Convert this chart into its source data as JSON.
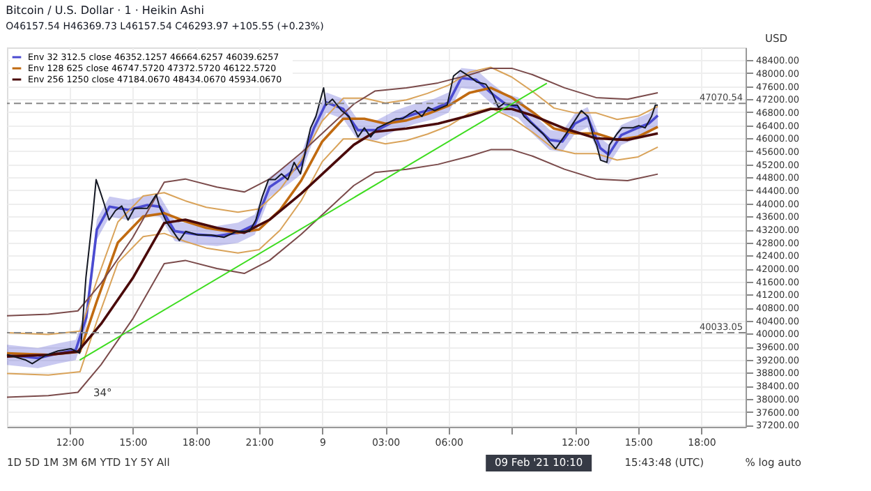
{
  "chart_data": {
    "type": "line",
    "title": "Bitcoin / U.S. Dollar · 1 · Heikin Ashi",
    "subtitle": "O46157.54 H46369.73 L46157.54 C46293.97 +105.55 (+0.23%)",
    "xlim": [
      "2021-02-08T09:02",
      "2021-02-09T20:06"
    ],
    "xticks": [
      {
        "value": "2021-02-08T12:00",
        "label": "12:00"
      },
      {
        "value": "2021-02-08T15:00",
        "label": "15:00"
      },
      {
        "value": "2021-02-08T18:00",
        "label": "18:00"
      },
      {
        "value": "2021-02-08T21:00",
        "label": "21:00"
      },
      {
        "value": "2021-02-09T00:00",
        "label": "9"
      },
      {
        "value": "2021-02-09T03:00",
        "label": "03:00"
      },
      {
        "value": "2021-02-09T06:00",
        "label": "06:00"
      },
      {
        "value": "2021-02-09T09:00",
        "label": null
      },
      {
        "value": "2021-02-09T12:00",
        "label": "12:00"
      },
      {
        "value": "2021-02-09T15:00",
        "label": "15:00"
      },
      {
        "value": "2021-02-09T18:00",
        "label": "18:00"
      }
    ],
    "ylim": [
      37140,
      48790
    ],
    "yticks": [
      {
        "value": 37200,
        "label": "37200.00"
      },
      {
        "value": 37600,
        "label": "37600.00"
      },
      {
        "value": 38000,
        "label": "38000.00"
      },
      {
        "value": 38400,
        "label": "38400.00"
      },
      {
        "value": 38800,
        "label": "38800.00"
      },
      {
        "value": 39200,
        "label": "39200.00"
      },
      {
        "value": 39600,
        "label": "39600.00"
      },
      {
        "value": 40000,
        "label": "40000.00"
      },
      {
        "value": 40400,
        "label": "40400.00"
      },
      {
        "value": 40800,
        "label": "40800.00"
      },
      {
        "value": 41200,
        "label": "41200.00"
      },
      {
        "value": 41600,
        "label": "41600.00"
      },
      {
        "value": 42000,
        "label": "42000.00"
      },
      {
        "value": 42400,
        "label": "42400.00"
      },
      {
        "value": 42800,
        "label": "42800.00"
      },
      {
        "value": 43200,
        "label": "43200.00"
      },
      {
        "value": 43600,
        "label": "43600.00"
      },
      {
        "value": 44000,
        "label": "44000.00"
      },
      {
        "value": 44400,
        "label": "44400.00"
      },
      {
        "value": 44800,
        "label": "44800.00"
      },
      {
        "value": 45200,
        "label": "45200.00"
      },
      {
        "value": 45600,
        "label": "45600.00"
      },
      {
        "value": 46000,
        "label": "46000.00"
      },
      {
        "value": 46400,
        "label": "46400.00"
      },
      {
        "value": 46800,
        "label": "46800.00"
      },
      {
        "value": 47200,
        "label": "47200.00"
      },
      {
        "value": 47600,
        "label": "47600.00"
      },
      {
        "value": 48000,
        "label": "48000.00"
      },
      {
        "value": 48400,
        "label": "48400.00"
      }
    ],
    "grid": true,
    "legend": "top left",
    "series": [
      {
        "name": "Env 32 312.5 close  46352.1257  46664.6257  46039.6257",
        "color": "#4b4bd1",
        "x": [
          "2021-02-08T09:02",
          "2021-02-08T10:30",
          "2021-02-08T11:30",
          "2021-02-08T12:18",
          "2021-02-08T12:48",
          "2021-02-08T13:18",
          "2021-02-08T13:54",
          "2021-02-08T14:48",
          "2021-02-08T15:42",
          "2021-02-08T16:18",
          "2021-02-08T17:00",
          "2021-02-08T18:00",
          "2021-02-08T19:00",
          "2021-02-08T20:00",
          "2021-02-08T20:48",
          "2021-02-08T21:30",
          "2021-02-08T22:24",
          "2021-02-08T23:00",
          "2021-02-08T23:36",
          "2021-02-09T00:12",
          "2021-02-09T01:00",
          "2021-02-09T01:42",
          "2021-02-09T02:36",
          "2021-02-09T03:30",
          "2021-02-09T04:24",
          "2021-02-09T05:18",
          "2021-02-09T06:00",
          "2021-02-09T06:36",
          "2021-02-09T07:18",
          "2021-02-09T08:00",
          "2021-02-09T08:42",
          "2021-02-09T09:18",
          "2021-02-09T09:54",
          "2021-02-09T10:48",
          "2021-02-09T11:24",
          "2021-02-09T12:00",
          "2021-02-09T12:36",
          "2021-02-09T13:12",
          "2021-02-09T13:36",
          "2021-02-09T14:12",
          "2021-02-09T14:54",
          "2021-02-09T15:30",
          "2021-02-09T15:56"
        ],
        "values": [
          39350,
          39250,
          39400,
          39500,
          40500,
          43200,
          43900,
          43800,
          43950,
          43900,
          43150,
          43050,
          43000,
          43100,
          43350,
          44500,
          44900,
          45200,
          46300,
          47100,
          46900,
          46250,
          46250,
          46550,
          46750,
          46900,
          47100,
          47850,
          47800,
          47400,
          47050,
          46950,
          46500,
          45950,
          45900,
          46450,
          46650,
          45700,
          45500,
          46100,
          46300,
          46450,
          46700
        ],
        "lower": [
          39040,
          38940,
          39090,
          39190,
          40190,
          42890,
          43590,
          43490,
          43640,
          43590,
          42840,
          42740,
          42690,
          42790,
          43040,
          44190,
          44590,
          44890,
          45990,
          46790,
          46590,
          45940,
          45940,
          46240,
          46440,
          46590,
          46790,
          47540,
          47490,
          47090,
          46740,
          46640,
          46190,
          45640,
          45590,
          46140,
          46340,
          45390,
          45190,
          45790,
          45990,
          46140,
          46390
        ],
        "upper": [
          39660,
          39560,
          39710,
          39810,
          40810,
          43510,
          44210,
          44110,
          44260,
          44210,
          43460,
          43360,
          43310,
          43410,
          43660,
          44810,
          45210,
          45510,
          46610,
          47410,
          47210,
          46560,
          46560,
          46860,
          47060,
          47210,
          47410,
          48160,
          48110,
          47710,
          47360,
          47260,
          46810,
          46260,
          46210,
          46760,
          46960,
          46010,
          45810,
          46410,
          46610,
          46760,
          47010
        ]
      },
      {
        "name": "Env 128 625 close  46747.5720  47372.5720  46122.5720",
        "color": "#c06a10",
        "x": [
          "2021-02-08T09:02",
          "2021-02-08T11:00",
          "2021-02-08T12:30",
          "2021-02-08T13:18",
          "2021-02-08T14:18",
          "2021-02-08T15:30",
          "2021-02-08T16:30",
          "2021-02-08T17:30",
          "2021-02-08T18:30",
          "2021-02-08T20:00",
          "2021-02-08T21:00",
          "2021-02-08T22:00",
          "2021-02-08T23:00",
          "2021-02-09T00:00",
          "2021-02-09T01:00",
          "2021-02-09T02:00",
          "2021-02-09T03:00",
          "2021-02-09T04:00",
          "2021-02-09T05:00",
          "2021-02-09T06:00",
          "2021-02-09T07:00",
          "2021-02-09T08:00",
          "2021-02-09T09:00",
          "2021-02-09T10:00",
          "2021-02-09T11:00",
          "2021-02-09T12:00",
          "2021-02-09T13:00",
          "2021-02-09T14:00",
          "2021-02-09T15:00",
          "2021-02-09T15:56"
        ],
        "values": [
          39400,
          39350,
          39450,
          41000,
          42800,
          43600,
          43700,
          43450,
          43250,
          43100,
          43200,
          43800,
          44700,
          45900,
          46600,
          46600,
          46450,
          46550,
          46750,
          47000,
          47400,
          47550,
          47250,
          46800,
          46300,
          46150,
          46150,
          45950,
          46050,
          46350
        ]
      },
      {
        "color": "#d9a35a",
        "x": [
          "2021-02-08T09:02",
          "2021-02-08T11:00",
          "2021-02-08T12:30",
          "2021-02-08T13:18",
          "2021-02-08T14:18",
          "2021-02-08T15:30",
          "2021-02-08T16:30",
          "2021-02-08T17:30",
          "2021-02-08T18:30",
          "2021-02-08T20:00",
          "2021-02-08T21:00",
          "2021-02-08T22:00",
          "2021-02-08T23:00",
          "2021-02-09T00:00",
          "2021-02-09T01:00",
          "2021-02-09T02:00",
          "2021-02-09T03:00",
          "2021-02-09T04:00",
          "2021-02-09T05:00",
          "2021-02-09T06:00",
          "2021-02-09T07:00",
          "2021-02-09T08:00",
          "2021-02-09T09:00",
          "2021-02-09T10:00",
          "2021-02-09T11:00",
          "2021-02-09T12:00",
          "2021-02-09T13:00",
          "2021-02-09T14:00",
          "2021-02-09T15:00",
          "2021-02-09T15:56"
        ],
        "values": [
          40030,
          39980,
          40080,
          41630,
          43430,
          44230,
          44330,
          44080,
          43880,
          43730,
          43830,
          44430,
          45330,
          46530,
          47230,
          47230,
          47080,
          47180,
          47380,
          47630,
          48030,
          48180,
          47880,
          47430,
          46930,
          46780,
          46780,
          46580,
          46680,
          46980
        ]
      },
      {
        "color": "#d9a35a",
        "x": [
          "2021-02-08T09:02",
          "2021-02-08T11:00",
          "2021-02-08T12:30",
          "2021-02-08T13:18",
          "2021-02-08T14:18",
          "2021-02-08T15:30",
          "2021-02-08T16:30",
          "2021-02-08T17:30",
          "2021-02-08T18:30",
          "2021-02-08T20:00",
          "2021-02-08T21:00",
          "2021-02-08T22:00",
          "2021-02-08T23:00",
          "2021-02-09T00:00",
          "2021-02-09T01:00",
          "2021-02-09T02:00",
          "2021-02-09T03:00",
          "2021-02-09T04:00",
          "2021-02-09T05:00",
          "2021-02-09T06:00",
          "2021-02-09T07:00",
          "2021-02-09T08:00",
          "2021-02-09T09:00",
          "2021-02-09T10:00",
          "2021-02-09T11:00",
          "2021-02-09T12:00",
          "2021-02-09T13:00",
          "2021-02-09T14:00",
          "2021-02-09T15:00",
          "2021-02-09T15:56"
        ],
        "values": [
          38780,
          38730,
          38830,
          40380,
          42180,
          42980,
          43080,
          42830,
          42630,
          42480,
          42580,
          43180,
          44080,
          45280,
          45980,
          45980,
          45830,
          45930,
          46130,
          46380,
          46780,
          46930,
          46630,
          46180,
          45680,
          45530,
          45530,
          45330,
          45430,
          45730
        ]
      },
      {
        "name": "Env 256 1250 close  47184.0670  48434.0670  45934.0670",
        "color": "#4a0a0a",
        "x": [
          "2021-02-08T09:02",
          "2021-02-08T11:00",
          "2021-02-08T12:24",
          "2021-02-08T13:30",
          "2021-02-08T15:00",
          "2021-02-08T16:30",
          "2021-02-08T17:30",
          "2021-02-08T19:00",
          "2021-02-08T20:18",
          "2021-02-08T21:30",
          "2021-02-08T23:00",
          "2021-02-09T00:30",
          "2021-02-09T01:30",
          "2021-02-09T02:30",
          "2021-02-09T04:00",
          "2021-02-09T05:30",
          "2021-02-09T07:00",
          "2021-02-09T08:00",
          "2021-02-09T09:00",
          "2021-02-09T10:00",
          "2021-02-09T11:30",
          "2021-02-09T13:00",
          "2021-02-09T14:30",
          "2021-02-09T15:56"
        ],
        "values": [
          39300,
          39350,
          39450,
          40300,
          41700,
          43400,
          43500,
          43250,
          43100,
          43500,
          44300,
          45200,
          45800,
          46200,
          46300,
          46450,
          46700,
          46900,
          46900,
          46700,
          46300,
          46000,
          45950,
          46150
        ]
      },
      {
        "color": "#7a4a4a",
        "x": [
          "2021-02-08T09:02",
          "2021-02-08T11:00",
          "2021-02-08T12:24",
          "2021-02-08T13:30",
          "2021-02-08T15:00",
          "2021-02-08T16:30",
          "2021-02-08T17:30",
          "2021-02-08T19:00",
          "2021-02-08T20:18",
          "2021-02-08T21:30",
          "2021-02-08T23:00",
          "2021-02-09T00:30",
          "2021-02-09T01:30",
          "2021-02-09T02:30",
          "2021-02-09T04:00",
          "2021-02-09T05:30",
          "2021-02-09T07:00",
          "2021-02-09T08:00",
          "2021-02-09T09:00",
          "2021-02-09T10:00",
          "2021-02-09T11:30",
          "2021-02-09T13:00",
          "2021-02-09T14:30",
          "2021-02-09T15:56"
        ],
        "values": [
          40550,
          40600,
          40700,
          41550,
          42950,
          44650,
          44750,
          44500,
          44350,
          44750,
          45550,
          46450,
          47050,
          47450,
          47550,
          47700,
          47950,
          48150,
          48150,
          47950,
          47550,
          47250,
          47200,
          47400
        ]
      },
      {
        "color": "#7a4a4a",
        "x": [
          "2021-02-08T09:02",
          "2021-02-08T11:00",
          "2021-02-08T12:24",
          "2021-02-08T13:30",
          "2021-02-08T15:00",
          "2021-02-08T16:30",
          "2021-02-08T17:30",
          "2021-02-08T19:00",
          "2021-02-08T20:18",
          "2021-02-08T21:30",
          "2021-02-08T23:00",
          "2021-02-09T00:30",
          "2021-02-09T01:30",
          "2021-02-09T02:30",
          "2021-02-09T04:00",
          "2021-02-09T05:30",
          "2021-02-09T07:00",
          "2021-02-09T08:00",
          "2021-02-09T09:00",
          "2021-02-09T10:00",
          "2021-02-09T11:30",
          "2021-02-09T13:00",
          "2021-02-09T14:30",
          "2021-02-09T15:56"
        ],
        "values": [
          38050,
          38100,
          38200,
          39050,
          40450,
          42150,
          42250,
          42000,
          41850,
          42250,
          43050,
          43950,
          44550,
          44950,
          45050,
          45200,
          45450,
          45650,
          45650,
          45450,
          45050,
          44750,
          44700,
          44900
        ]
      },
      {
        "color": "#131722",
        "x": [
          "2021-02-08T09:02",
          "2021-02-08T09:56",
          "2021-02-08T10:14",
          "2021-02-08T10:51",
          "2021-02-08T11:27",
          "2021-02-08T12:04",
          "2021-02-08T12:29",
          "2021-02-08T12:33",
          "2021-02-08T12:47",
          "2021-02-08T13:05",
          "2021-02-08T13:16",
          "2021-02-08T13:27",
          "2021-02-08T13:38",
          "2021-02-08T13:53",
          "2021-02-08T14:11",
          "2021-02-08T14:29",
          "2021-02-08T14:47",
          "2021-02-08T15:05",
          "2021-02-08T15:42",
          "2021-02-08T16:07",
          "2021-02-08T16:18",
          "2021-02-08T16:37",
          "2021-02-08T16:55",
          "2021-02-08T17:13",
          "2021-02-08T17:31",
          "2021-02-08T18:07",
          "2021-02-08T18:44",
          "2021-02-08T19:20",
          "2021-02-08T19:56",
          "2021-02-08T20:33",
          "2021-02-08T20:51",
          "2021-02-08T21:09",
          "2021-02-08T21:27",
          "2021-02-08T21:46",
          "2021-02-08T22:04",
          "2021-02-08T22:22",
          "2021-02-08T22:40",
          "2021-02-08T22:58",
          "2021-02-08T23:27",
          "2021-02-08T23:42",
          "2021-02-09T00:04",
          "2021-02-09T00:11",
          "2021-02-09T00:29",
          "2021-02-09T00:55",
          "2021-02-09T01:16",
          "2021-02-09T01:42",
          "2021-02-09T02:00",
          "2021-02-09T02:18",
          "2021-02-09T02:37",
          "2021-02-09T03:13",
          "2021-02-09T03:31",
          "2021-02-09T03:49",
          "2021-02-09T04:07",
          "2021-02-09T04:25",
          "2021-02-09T04:44",
          "2021-02-09T05:02",
          "2021-02-09T05:20",
          "2021-02-09T05:56",
          "2021-02-09T06:14",
          "2021-02-09T06:33",
          "2021-02-09T06:58",
          "2021-02-09T07:20",
          "2021-02-09T07:46",
          "2021-02-09T08:04",
          "2021-02-09T08:22",
          "2021-02-09T08:40",
          "2021-02-09T08:58",
          "2021-02-09T09:16",
          "2021-02-09T09:35",
          "2021-02-09T09:53",
          "2021-02-09T10:29",
          "2021-02-09T10:47",
          "2021-02-09T11:05",
          "2021-02-09T11:23",
          "2021-02-09T11:42",
          "2021-02-09T12:18",
          "2021-02-09T12:37",
          "2021-02-09T12:55",
          "2021-02-09T13:02",
          "2021-02-09T13:13",
          "2021-02-09T13:31",
          "2021-02-09T13:38",
          "2021-02-09T14:00",
          "2021-02-09T14:14",
          "2021-02-09T14:44",
          "2021-02-09T15:02",
          "2021-02-09T15:20",
          "2021-02-09T15:38",
          "2021-02-09T15:49",
          "2021-02-09T15:56"
        ],
        "values": [
          39360,
          39190,
          39080,
          39330,
          39470,
          39540,
          39400,
          39680,
          41730,
          43490,
          44730,
          44380,
          44020,
          43490,
          43780,
          43920,
          43490,
          43850,
          43850,
          44270,
          43850,
          43420,
          43140,
          42860,
          43140,
          43030,
          43030,
          42960,
          43140,
          43140,
          43490,
          44200,
          44730,
          44730,
          44910,
          44730,
          45260,
          44910,
          46320,
          46670,
          47550,
          47020,
          47200,
          46850,
          46670,
          46040,
          46320,
          46040,
          46320,
          46500,
          46600,
          46600,
          46740,
          46850,
          46670,
          46950,
          46850,
          47020,
          47910,
          48080,
          47910,
          47730,
          47660,
          47380,
          46950,
          47090,
          47020,
          47020,
          46670,
          46490,
          46140,
          45890,
          45680,
          45960,
          46250,
          46850,
          46670,
          45960,
          45790,
          45330,
          45260,
          45790,
          46140,
          46320,
          46320,
          46390,
          46320,
          46670,
          47020,
          47020
        ]
      },
      {
        "color": "#3ddc1f",
        "x": [
          "2021-02-08T12:29",
          "2021-02-09T10:40"
        ],
        "values": [
          39190,
          47690
        ]
      }
    ],
    "ref_lines": [
      {
        "axis": "y",
        "value": 47070.54,
        "label": "47070.54",
        "color": "#888888",
        "line_style": "dashed"
      },
      {
        "axis": "y",
        "value": 40033.05,
        "label": "40033.05",
        "color": "#888888",
        "line_style": "dashed"
      }
    ],
    "annotations": [
      "USD",
      "1D  5D  1M  3M  6M  YTD  1Y  5Y  All",
      "15:43:48 (UTC)",
      "%  log  auto",
      "34°",
      "09 Feb '21  10:10"
    ]
  }
}
